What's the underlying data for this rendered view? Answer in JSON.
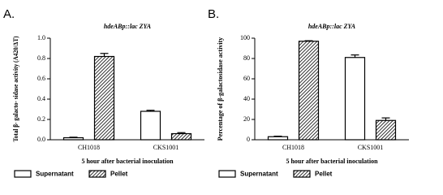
{
  "chart_data": [
    {
      "type": "bar",
      "panel": "A.",
      "title": "hdeABp::lac ZYA",
      "ylabel": "Total β- galacto- sidase activity (A420/ΔT)",
      "xlabel": "5 hour after bacterial inoculation",
      "categories": [
        "CH1018",
        "CKS1001"
      ],
      "series": [
        {
          "name": "Supernatant",
          "color": "#ffffff",
          "values": [
            0.02,
            0.28
          ],
          "errors": [
            0.005,
            0.01
          ]
        },
        {
          "name": "Pellet",
          "color": "hatch",
          "values": [
            0.82,
            0.06
          ],
          "errors": [
            0.03,
            0.01
          ]
        }
      ],
      "ylim": [
        0,
        1.0
      ],
      "yticks": [
        {
          "value": 0,
          "label": "0.0"
        },
        0.2,
        0.4,
        0.6,
        0.8,
        {
          "value": 1.0,
          "label": "1.0"
        }
      ]
    },
    {
      "type": "bar",
      "panel": "B.",
      "title": "hdeABp::lac ZYA",
      "ylabel": "Percentage of β-galactosidase activity",
      "xlabel": "5 hour after bacterial inoculation",
      "categories": [
        "CH1018",
        "CKS1001"
      ],
      "series": [
        {
          "name": "Supernatant",
          "color": "#ffffff",
          "values": [
            3,
            81
          ],
          "errors": [
            0.5,
            2.5
          ]
        },
        {
          "name": "Pellet",
          "color": "hatch",
          "values": [
            97,
            19
          ],
          "errors": [
            0.5,
            2.5
          ]
        }
      ],
      "ylim": [
        0,
        100
      ],
      "yticks": [
        0,
        20,
        40,
        60,
        80,
        100
      ]
    }
  ]
}
